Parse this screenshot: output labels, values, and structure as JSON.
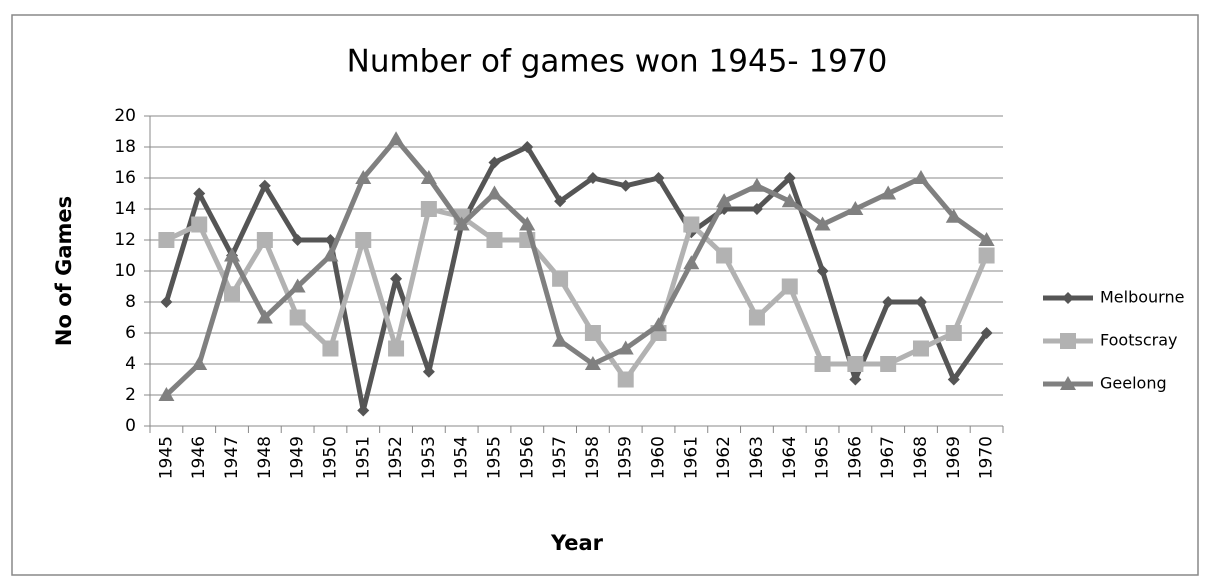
{
  "chart_data": {
    "type": "line",
    "title": "Number of games won 1945- 1970",
    "x_label": "Year",
    "y_label": "No of Games",
    "categories": [
      "1945",
      "1946",
      "1947",
      "1948",
      "1949",
      "1950",
      "1951",
      "1952",
      "1953",
      "1954",
      "1955",
      "1956",
      "1957",
      "1958",
      "1959",
      "1960",
      "1961",
      "1962",
      "1963",
      "1964",
      "1965",
      "1966",
      "1967",
      "1968",
      "1969",
      "1970"
    ],
    "series": [
      {
        "name": "Melbourne",
        "color": "#555555",
        "marker": "diamond",
        "values": [
          8,
          15,
          11,
          15.5,
          12,
          12,
          1,
          9.5,
          3.5,
          13,
          17,
          18,
          14.5,
          16,
          15.5,
          16,
          12.5,
          14,
          14,
          16,
          10,
          3,
          8,
          8,
          3,
          6
        ]
      },
      {
        "name": "Footscray",
        "color": "#b2b2b2",
        "marker": "square",
        "values": [
          12,
          13,
          8.5,
          12,
          7,
          5,
          12,
          5,
          14,
          13.5,
          12,
          12,
          9.5,
          6,
          3,
          6,
          13,
          11,
          7,
          9,
          4,
          4,
          4,
          5,
          6,
          11
        ]
      },
      {
        "name": "Geelong",
        "color": "#808080",
        "marker": "triangle",
        "values": [
          2,
          4,
          11,
          7,
          9,
          11,
          16,
          18.5,
          16,
          13,
          15,
          13,
          5.5,
          4,
          5,
          6.5,
          10.5,
          14.5,
          15.5,
          14.5,
          13,
          14,
          15,
          16,
          13.5,
          12
        ]
      }
    ],
    "ylim": [
      0,
      20
    ],
    "yticks": [
      0,
      2,
      4,
      6,
      8,
      10,
      12,
      14,
      16,
      18,
      20
    ],
    "grid": true,
    "legend": "right"
  }
}
